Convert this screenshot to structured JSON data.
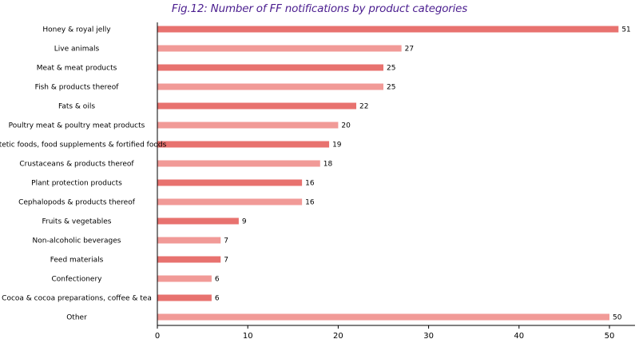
{
  "chart_data": {
    "type": "bar",
    "orientation": "horizontal",
    "title": "Fig.12: Number of FF notifications by product categories",
    "xlabel": "",
    "ylabel": "",
    "xlim": [
      0,
      53
    ],
    "xticks": [
      0,
      10,
      20,
      30,
      40,
      50
    ],
    "grid": false,
    "legend": "none",
    "colors": {
      "bar_dark": "#e8726f",
      "bar_light": "#f19a97",
      "axis": "#000000",
      "title": "#4b1e8f"
    },
    "categories": [
      "Honey & royal jelly",
      "Live animals",
      "Meat & meat products",
      "Fish & products thereof",
      "Fats & oils",
      "Poultry meat & poultry meat products",
      "Dietetic foods, food supplements & fortified foods",
      "Crustaceans & products thereof",
      "Plant protection products",
      "Cephalopods & products thereof",
      "Fruits & vegetables",
      "Non-alcoholic beverages",
      "Feed materials",
      "Confectionery",
      "Cocoa & cocoa preparations, coffee & tea",
      "Other"
    ],
    "values": [
      51,
      27,
      25,
      25,
      22,
      20,
      19,
      18,
      16,
      16,
      9,
      7,
      7,
      6,
      6,
      50
    ]
  }
}
